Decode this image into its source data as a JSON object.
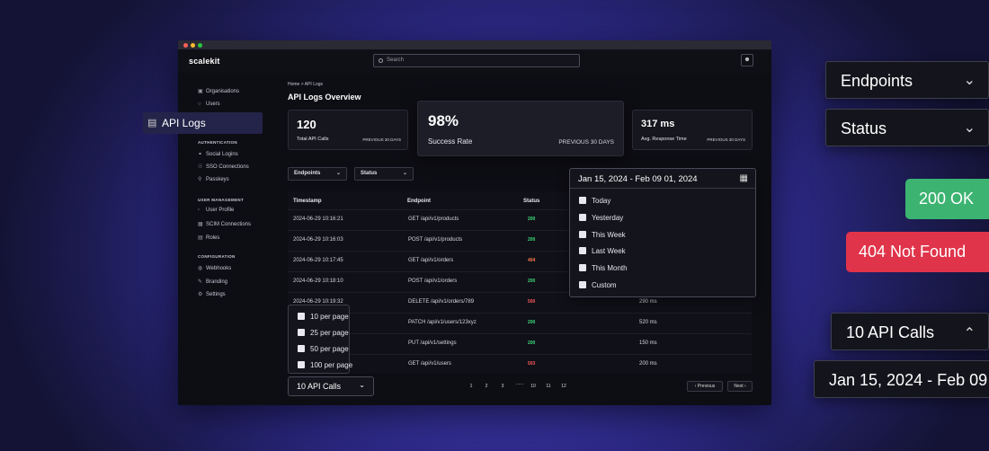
{
  "app": {
    "logo": "scalekit",
    "search_placeholder": "Search",
    "avatar_icon": "user-icon"
  },
  "sidebar": {
    "top": [
      {
        "label": "Organisations",
        "icon": "organisations-icon"
      },
      {
        "label": "Users",
        "icon": "users-icon"
      }
    ],
    "active": {
      "label": "API Logs",
      "icon": "document-icon"
    },
    "sections": [
      {
        "heading": "AUTHENTICATION",
        "items": [
          {
            "label": "Social Logins",
            "icon": "social-icon"
          },
          {
            "label": "SSO Connections",
            "icon": "sso-icon"
          },
          {
            "label": "Passkeys",
            "icon": "key-icon"
          }
        ]
      },
      {
        "heading": "USER MANAGEMENT",
        "items": [
          {
            "label": "User Profile",
            "icon": "profile-icon"
          },
          {
            "label": "SCIM Connections",
            "icon": "scim-icon"
          },
          {
            "label": "Roles",
            "icon": "roles-icon"
          }
        ]
      },
      {
        "heading": "CONFIGURATION",
        "items": [
          {
            "label": "Webhooks",
            "icon": "webhook-icon"
          },
          {
            "label": "Branding",
            "icon": "branding-icon"
          },
          {
            "label": "Settings",
            "icon": "gear-icon"
          }
        ]
      }
    ]
  },
  "breadcrumb": "Home > API Logs",
  "title": "API Logs Overview",
  "stats": [
    {
      "value": "120",
      "label": "Total API Calls",
      "period": "PREVIOUS 30 DAYS"
    },
    {
      "value": "98%",
      "label": "Success Rate",
      "period": "PREVIOUS 30 DAYS"
    },
    {
      "value": "317 ms",
      "label": "Avg. Response Time",
      "period": "PREVIOUS 30 DAYS"
    }
  ],
  "filters": {
    "endpoints": "Endpoints",
    "status": "Status"
  },
  "date_range": {
    "label": "Jan 15, 2024 - Feb 09 01, 2024",
    "options": [
      "Today",
      "Yesterday",
      "This Week",
      "Last Week",
      "This Month",
      "Custom"
    ]
  },
  "table": {
    "headers": [
      "Timestamp",
      "Endpoint",
      "Status"
    ],
    "rows": [
      {
        "timestamp": "2024-06-29 10:16:21",
        "endpoint": "GET /api/v1/products",
        "status": "200",
        "time": ""
      },
      {
        "timestamp": "2024-06-29 10:16:03",
        "endpoint": "POST /api/v1/products",
        "status": "200",
        "time": ""
      },
      {
        "timestamp": "2024-06-29 10:17:45",
        "endpoint": "GET /api/v1/orders",
        "status": "404",
        "time": ""
      },
      {
        "timestamp": "2024-06-29 10:18:10",
        "endpoint": "POST /api/v1/orders",
        "status": "200",
        "time": ""
      },
      {
        "timestamp": "2024-06-29 10:19:32",
        "endpoint": "DELETE /api/v1/orders/789",
        "status": "500",
        "time": "290 ms"
      },
      {
        "timestamp": "",
        "endpoint": "PATCH /api/v1/users/123xyz",
        "status": "200",
        "time": "520 ms"
      },
      {
        "timestamp": "",
        "endpoint": "PUT /api/v1/settings",
        "status": "200",
        "time": "150 ms"
      },
      {
        "timestamp": "",
        "endpoint": "GET /api/v1/users",
        "status": "503",
        "time": "200 ms"
      }
    ]
  },
  "per_page": {
    "options": [
      "10 per page",
      "25 per page",
      "50 per page",
      "100 per page"
    ],
    "selected": "10 API Calls"
  },
  "pagination": {
    "pages": [
      "1",
      "2",
      "3",
      "......",
      "10",
      "11",
      "12"
    ],
    "previous": "Previous",
    "next": "Next"
  },
  "callouts": {
    "api_logs": "API Logs",
    "endpoints": "Endpoints",
    "status": "Status",
    "ok_badge": "200 OK",
    "notfound_badge": "404 Not Found",
    "calls": "10 API Calls",
    "date": "Jan 15, 2024 - Feb 09"
  },
  "colors": {
    "success": "#3cb371",
    "error": "#e0344a",
    "accent": "#3a36a8"
  }
}
